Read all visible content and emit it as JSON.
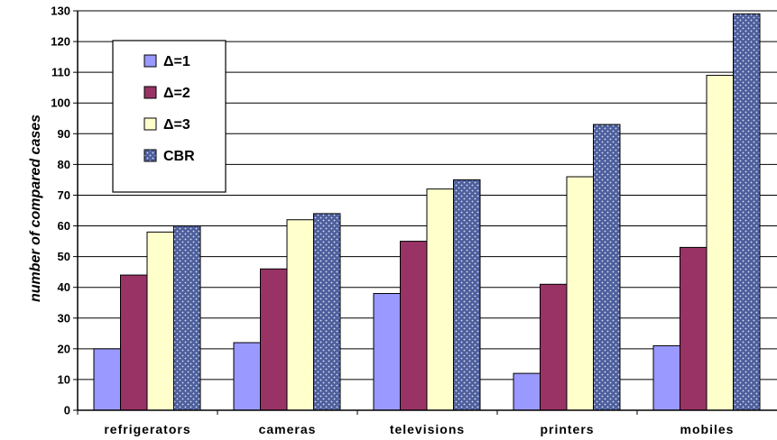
{
  "chart_data": {
    "type": "bar",
    "title": "",
    "xlabel": "",
    "ylabel": "number of compared cases",
    "ylim": [
      0,
      130
    ],
    "yticks": [
      0,
      10,
      20,
      30,
      40,
      50,
      60,
      70,
      80,
      90,
      100,
      110,
      120,
      130
    ],
    "grid": "horizontal",
    "legend_position": "top-left",
    "categories": [
      "refrigerators",
      "cameras",
      "televisions",
      "printers",
      "mobiles"
    ],
    "series": [
      {
        "name": "Δ=1",
        "color": "#9999ff",
        "pattern": "solid",
        "values": [
          20,
          22,
          38,
          12,
          21
        ]
      },
      {
        "name": "Δ=2",
        "color": "#993366",
        "pattern": "solid",
        "values": [
          44,
          46,
          55,
          41,
          53
        ]
      },
      {
        "name": "Δ=3",
        "color": "#ffffcc",
        "pattern": "solid",
        "values": [
          58,
          62,
          72,
          76,
          109
        ]
      },
      {
        "name": "CBR",
        "color": "#4d5f9c",
        "pattern": "dotted",
        "values": [
          60,
          64,
          75,
          93,
          129
        ]
      }
    ]
  }
}
